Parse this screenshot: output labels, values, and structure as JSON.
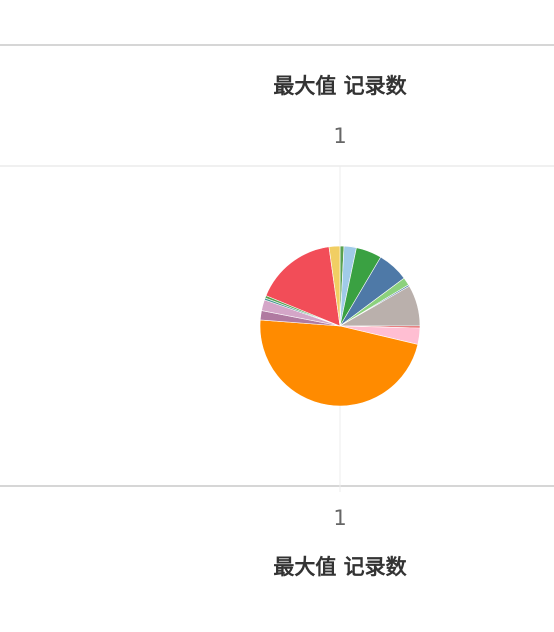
{
  "chart_data": {
    "type": "pie",
    "top_axis": {
      "title": "最大值 记录数",
      "tick_label": "1"
    },
    "bottom_axis": {
      "title": "最大值 记录数",
      "tick_label": "1"
    },
    "slices": [
      {
        "value": 0.8,
        "color": "#59a14f"
      },
      {
        "value": 2.5,
        "color": "#a0cbe8"
      },
      {
        "value": 5.2,
        "color": "#3aa142"
      },
      {
        "value": 6.3,
        "color": "#4e79a7"
      },
      {
        "value": 1.6,
        "color": "#8cd17d"
      },
      {
        "value": 0.3,
        "color": "#4e79a7"
      },
      {
        "value": 8.3,
        "color": "#bab0ac"
      },
      {
        "value": 0.4,
        "color": "#e15759"
      },
      {
        "value": 3.3,
        "color": "#ffbed2"
      },
      {
        "value": 47.5,
        "color": "#ff8b00"
      },
      {
        "value": 1.9,
        "color": "#b07aa1"
      },
      {
        "value": 2.2,
        "color": "#d4a6c8"
      },
      {
        "value": 0.4,
        "color": "#499894"
      },
      {
        "value": 0.5,
        "color": "#59a14f"
      },
      {
        "value": 16.6,
        "color": "#f24d58"
      },
      {
        "value": 2.2,
        "color": "#f1ce63"
      }
    ]
  }
}
